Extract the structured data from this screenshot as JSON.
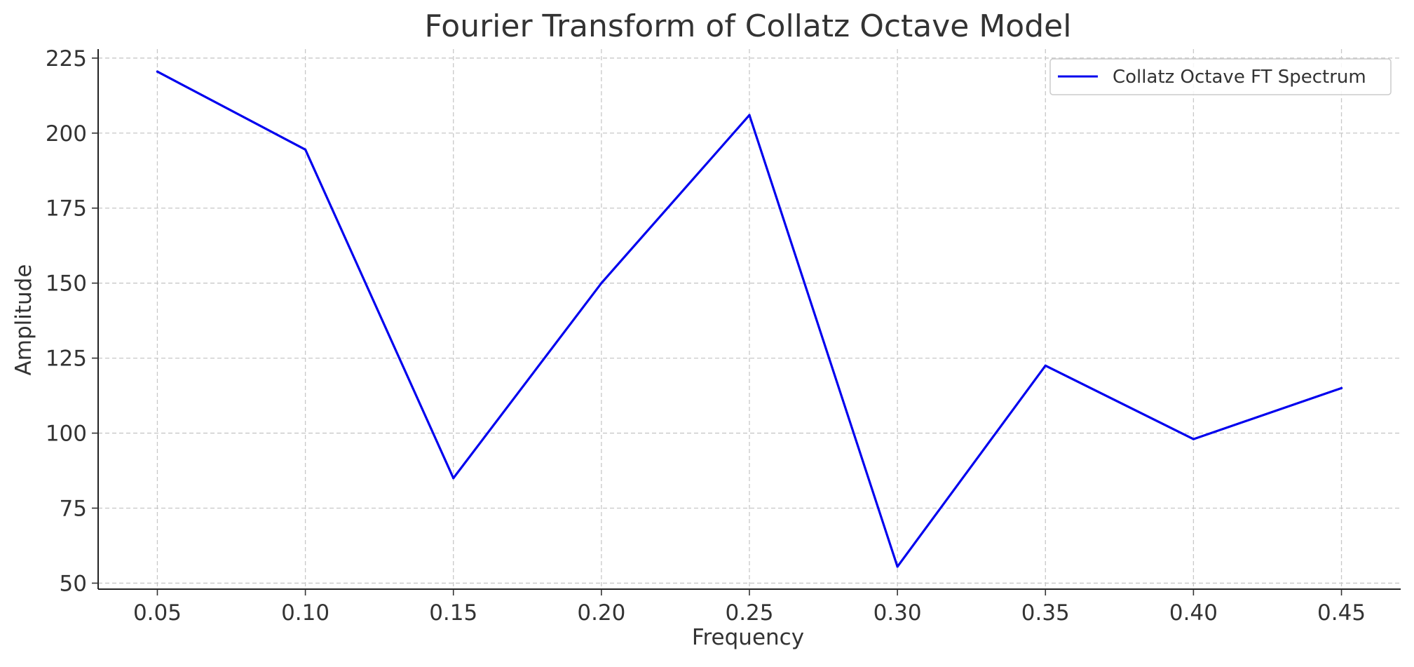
{
  "chart_data": {
    "type": "line",
    "title": "Fourier Transform of Collatz Octave Model",
    "xlabel": "Frequency",
    "ylabel": "Amplitude",
    "x": [
      0.05,
      0.1,
      0.15,
      0.2,
      0.25,
      0.3,
      0.35,
      0.4,
      0.45
    ],
    "x_ticks": [
      "0.05",
      "0.10",
      "0.15",
      "0.20",
      "0.25",
      "0.30",
      "0.35",
      "0.40",
      "0.45"
    ],
    "y_ticks": [
      "50",
      "75",
      "100",
      "125",
      "150",
      "175",
      "200",
      "225"
    ],
    "xlim": [
      0.03,
      0.47
    ],
    "ylim": [
      48,
      228
    ],
    "grid": true,
    "legend_position": "top-right",
    "series": [
      {
        "name": "Collatz Octave FT Spectrum",
        "color": "#0000ee",
        "values": [
          220.5,
          194.5,
          85,
          150,
          206,
          55.5,
          122.5,
          98,
          115
        ]
      }
    ]
  }
}
